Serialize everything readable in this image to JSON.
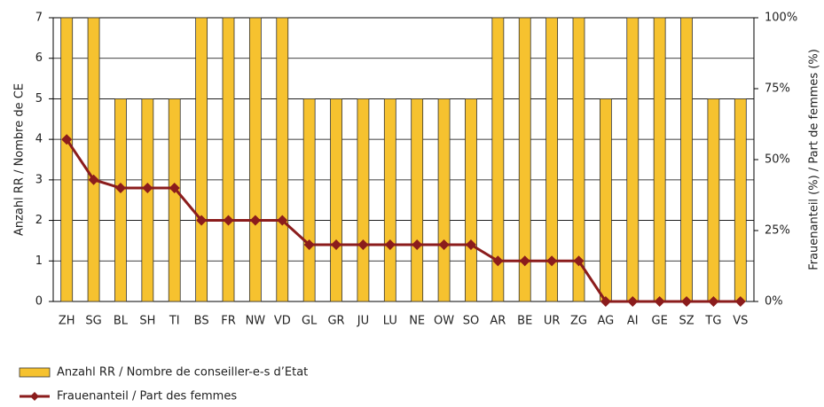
{
  "chart_data": {
    "type": "bar",
    "y_label": "Anzahl RR / Nombre de CE",
    "y2_label": "Frauenanteil (%) / Part de femmes (%)",
    "categories": [
      "ZH",
      "SG",
      "BL",
      "SH",
      "TI",
      "BS",
      "FR",
      "NW",
      "VD",
      "GL",
      "GR",
      "JU",
      "LU",
      "NE",
      "OW",
      "SO",
      "AR",
      "BE",
      "UR",
      "ZG",
      "AG",
      "AI",
      "GE",
      "SZ",
      "TG",
      "VS"
    ],
    "series": [
      {
        "name": "Anzahl RR / Nombre de conseiller-e-s d’Etat",
        "type": "bar",
        "color": "#f6c22f",
        "values": [
          7,
          7,
          5,
          5,
          5,
          7,
          7,
          7,
          7,
          5,
          5,
          5,
          5,
          5,
          5,
          5,
          7,
          7,
          7,
          7,
          5,
          7,
          7,
          7,
          5,
          5
        ]
      },
      {
        "name": "Frauenanteil / Part des femmes",
        "type": "line",
        "axis": "y2",
        "color": "#8b1c1c",
        "values": [
          57.1,
          42.9,
          40,
          40,
          40,
          28.6,
          28.6,
          28.6,
          28.6,
          20,
          20,
          20,
          20,
          20,
          20,
          20,
          14.3,
          14.3,
          14.3,
          14.3,
          0,
          0,
          0,
          0,
          0,
          0
        ]
      }
    ],
    "ylim": [
      0,
      7
    ],
    "yticks": [
      0,
      1,
      2,
      3,
      4,
      5,
      6,
      7
    ],
    "y2lim": [
      0,
      100
    ],
    "y2ticks": [
      {
        "value": 0,
        "label": "0%"
      },
      {
        "value": 25,
        "label": "25%"
      },
      {
        "value": 50,
        "label": "50%"
      },
      {
        "value": 75,
        "label": "75%"
      },
      {
        "value": 100,
        "label": "100%"
      }
    ],
    "grid": true,
    "legend": "bottom"
  }
}
